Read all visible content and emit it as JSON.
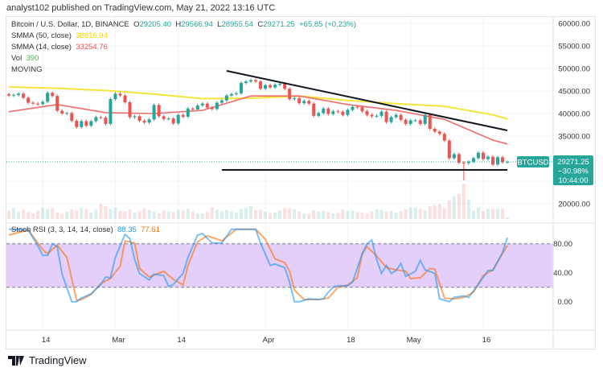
{
  "header": {
    "published": "analyst102 published on TradingView.com, May 21, 2022 13:16 UTC"
  },
  "legend": {
    "symbol": "Bitcoin / U.S. Dollar, 1D, BINANCE",
    "o_label": "O",
    "o": "29205.40",
    "h_label": "H",
    "h": "29566.94",
    "l_label": "L",
    "l": "28955.54",
    "c_label": "C",
    "c": "29271.25",
    "change": "+65.85 (+0.23%)",
    "smma50_label": "SMMA (50, close)",
    "smma50_value": "38816.94",
    "smma14_label": "SMMA (14, close)",
    "smma14_value": "33254.76",
    "vol_label": "Vol",
    "vol_value": "390",
    "moving": "MOVING",
    "stoch_label": "Stoch RSI (3, 3, 14, 14, close)",
    "stoch_k": "88.35",
    "stoch_d": "77.61"
  },
  "price_box": {
    "symbol": "BTCUSD",
    "price": "29271.25",
    "change": "−30.98%",
    "countdown": "10:44:00"
  },
  "price_axis": [
    "60000.00",
    "55000.00",
    "50000.00",
    "45000.00",
    "40000.00",
    "35000.00",
    "20000.00"
  ],
  "rsi_axis": [
    "80.00",
    "40.00",
    "0.00"
  ],
  "time_axis": [
    {
      "label": "14",
      "date": "Feb 14"
    },
    {
      "label": "Mar",
      "date": "Mar 1"
    },
    {
      "label": "14",
      "date": "Mar 14"
    },
    {
      "label": "Apr",
      "date": "Apr 1"
    },
    {
      "label": "18",
      "date": "Apr 18"
    },
    {
      "label": "May",
      "date": "May 1"
    },
    {
      "label": "16",
      "date": "May 16"
    }
  ],
  "footer": {
    "brand": "TradingView"
  },
  "colors": {
    "up": "#26a69a",
    "down": "#ef5350",
    "smma50": "#f7e43a",
    "smma14": "#f26b6b",
    "k": "#2196f3",
    "d": "#ff6d00",
    "band": "#e4cffa"
  },
  "chart_data": {
    "type": "candlestick",
    "first_open": 44300,
    "closes": [
      44000,
      44100,
      44400,
      43500,
      42400,
      42200,
      42100,
      42600,
      44600,
      43900,
      40600,
      40000,
      40100,
      38400,
      37000,
      38300,
      37300,
      38300,
      39200,
      39100,
      37700,
      43200,
      44400,
      44000,
      42500,
      39200,
      39400,
      38400,
      38000,
      38700,
      41900,
      39400,
      38800,
      38900,
      37800,
      39700,
      39300,
      41100,
      40900,
      41800,
      42200,
      41300,
      41000,
      42400,
      42900,
      44000,
      44300,
      44500,
      46800,
      47100,
      47400,
      47100,
      45500,
      46300,
      45800,
      46400,
      46600,
      45500,
      43200,
      43400,
      42300,
      42800,
      42200,
      39500,
      40100,
      41100,
      39900,
      40500,
      40400,
      39700,
      40800,
      41500,
      41400,
      40500,
      39700,
      39400,
      39500,
      40400,
      38100,
      39200,
      39700,
      38600,
      37700,
      38500,
      38500,
      37700,
      39700,
      36600,
      36000,
      35500,
      34000,
      30100,
      31000,
      29100,
      29000,
      29300,
      30100,
      31300,
      29900,
      30400,
      28700,
      30300,
      29200,
      29271.25
    ],
    "extremes": [
      {
        "date": "May 12",
        "low": 25200
      },
      {
        "date": "May 21",
        "high": 29566.94,
        "low": 28955.54
      }
    ],
    "volumes": [
      45,
      60,
      40,
      50,
      38,
      30,
      45,
      62,
      55,
      58,
      35,
      28,
      40,
      52,
      45,
      60,
      55,
      35,
      50,
      80,
      70,
      55,
      60,
      45,
      40,
      50,
      35,
      42,
      60,
      48,
      40,
      30,
      45,
      40,
      38,
      50,
      45,
      55,
      40,
      32,
      30,
      40,
      62,
      50,
      42,
      48,
      40,
      35,
      55,
      60,
      70,
      48,
      50,
      40,
      32,
      35,
      45,
      60,
      58,
      52,
      40,
      30,
      28,
      48,
      40,
      45,
      38,
      30,
      32,
      52,
      42,
      46,
      38,
      36,
      30,
      42,
      52,
      48,
      40,
      45,
      34,
      42,
      55,
      62,
      60,
      55,
      48,
      70,
      75,
      80,
      60,
      100,
      120,
      135,
      190,
      105,
      45,
      62,
      45,
      55,
      55,
      55,
      55,
      8
    ],
    "smma50": [
      [
        "Feb 7",
        45900
      ],
      [
        "Feb 17",
        45600
      ],
      [
        "Feb 27",
        45100
      ],
      [
        "Mar 9",
        44300
      ],
      [
        "Mar 19",
        43300
      ],
      [
        "Mar 29",
        43400
      ],
      [
        "Apr 8",
        43900
      ],
      [
        "Apr 18",
        42900
      ],
      [
        "Apr 28",
        42200
      ],
      [
        "May 8",
        41600
      ],
      [
        "May 18",
        39700
      ],
      [
        "May 21",
        38816.94
      ]
    ],
    "smma14": [
      [
        "Feb 7",
        40400
      ],
      [
        "Feb 17",
        42000
      ],
      [
        "Feb 27",
        40200
      ],
      [
        "Mar 9",
        40000
      ],
      [
        "Mar 19",
        40700
      ],
      [
        "Mar 29",
        43900
      ],
      [
        "Apr 8",
        43900
      ],
      [
        "Apr 18",
        42000
      ],
      [
        "Apr 28",
        40700
      ],
      [
        "May 8",
        38700
      ],
      [
        "May 18",
        34100
      ],
      [
        "May 21",
        33254.76
      ]
    ],
    "trendlines": [
      {
        "from": [
          "Mar 24",
          49460
        ],
        "to": [
          "May 21",
          36250
        ]
      },
      {
        "from": [
          "Mar 23",
          27500
        ],
        "to": [
          "May 21",
          27500
        ]
      }
    ],
    "price_range": [
      20000,
      60000
    ],
    "stoch_k": [
      [
        "Feb 7",
        100
      ],
      [
        "Feb 11",
        99
      ],
      [
        "Feb 13",
        77
      ],
      [
        "Feb 14",
        64
      ],
      [
        "Feb 15",
        64
      ],
      [
        "Feb 16",
        80
      ],
      [
        "Feb 17",
        76
      ],
      [
        "Feb 18",
        38
      ],
      [
        "Feb 20",
        0
      ],
      [
        "Feb 21",
        0
      ],
      [
        "Feb 22",
        5
      ],
      [
        "Feb 24",
        11
      ],
      [
        "Feb 26",
        24
      ],
      [
        "Feb 27",
        34
      ],
      [
        "Feb 28",
        33
      ],
      [
        "Mar 1",
        61
      ],
      [
        "Mar 3",
        93
      ],
      [
        "Mar 4",
        87
      ],
      [
        "Mar 5",
        58
      ],
      [
        "Mar 6",
        39
      ],
      [
        "Mar 8",
        30
      ],
      [
        "Mar 9",
        38
      ],
      [
        "Mar 11",
        36
      ],
      [
        "Mar 12",
        21
      ],
      [
        "Mar 13",
        24
      ],
      [
        "Mar 15",
        39
      ],
      [
        "Mar 16",
        61
      ],
      [
        "Mar 18",
        92
      ],
      [
        "Mar 19",
        94
      ],
      [
        "Mar 21",
        81
      ],
      [
        "Mar 23",
        81
      ],
      [
        "Mar 25",
        100
      ],
      [
        "Mar 30",
        100
      ],
      [
        "Mar 31",
        81
      ],
      [
        "Apr 2",
        50
      ],
      [
        "Apr 3",
        52
      ],
      [
        "Apr 5",
        47
      ],
      [
        "Apr 6",
        27
      ],
      [
        "Apr 7",
        0
      ],
      [
        "Apr 8",
        0
      ],
      [
        "Apr 10",
        4
      ],
      [
        "Apr 12",
        3
      ],
      [
        "Apr 13",
        4
      ],
      [
        "Apr 14",
        13
      ],
      [
        "Apr 15",
        20
      ],
      [
        "Apr 16",
        22
      ],
      [
        "Apr 18",
        22
      ],
      [
        "Apr 19",
        27
      ],
      [
        "Apr 21",
        66
      ],
      [
        "Apr 22",
        80
      ],
      [
        "Apr 23",
        85
      ],
      [
        "Apr 24",
        58
      ],
      [
        "Apr 25",
        39
      ],
      [
        "Apr 26",
        50
      ],
      [
        "Apr 27",
        39
      ],
      [
        "Apr 28",
        43
      ],
      [
        "Apr 29",
        53
      ],
      [
        "Apr 30",
        35
      ],
      [
        "May 2",
        42
      ],
      [
        "May 3",
        57
      ],
      [
        "May 4",
        44
      ],
      [
        "May 6",
        39
      ],
      [
        "May 7",
        4
      ],
      [
        "May 9",
        0
      ],
      [
        "May 10",
        6
      ],
      [
        "May 12",
        8
      ],
      [
        "May 13",
        6
      ],
      [
        "May 15",
        24
      ],
      [
        "May 17",
        43
      ],
      [
        "May 18",
        43
      ],
      [
        "May 20",
        68
      ],
      [
        "May 21",
        88.35
      ]
    ],
    "stoch_d": [
      [
        "Feb 7",
        92
      ],
      [
        "Feb 11",
        99
      ],
      [
        "Feb 14",
        72
      ],
      [
        "Feb 15",
        66
      ],
      [
        "Feb 17",
        78
      ],
      [
        "Feb 19",
        61
      ],
      [
        "Feb 21",
        2
      ],
      [
        "Feb 22",
        3
      ],
      [
        "Feb 24",
        10
      ],
      [
        "Feb 26",
        25
      ],
      [
        "Feb 28",
        32
      ],
      [
        "Mar 2",
        49
      ],
      [
        "Mar 3",
        84
      ],
      [
        "Mar 5",
        81
      ],
      [
        "Mar 6",
        46
      ],
      [
        "Mar 8",
        34
      ],
      [
        "Mar 11",
        42
      ],
      [
        "Mar 13",
        31
      ],
      [
        "Mar 15",
        23
      ],
      [
        "Mar 16",
        50
      ],
      [
        "Mar 18",
        83
      ],
      [
        "Mar 20",
        91
      ],
      [
        "Mar 23",
        84
      ],
      [
        "Mar 26",
        100
      ],
      [
        "Mar 30",
        100
      ],
      [
        "Apr 1",
        86
      ],
      [
        "Apr 3",
        59
      ],
      [
        "Apr 5",
        54
      ],
      [
        "Apr 6",
        42
      ],
      [
        "Apr 7",
        16
      ],
      [
        "Apr 9",
        3
      ],
      [
        "Apr 12",
        3
      ],
      [
        "Apr 14",
        5
      ],
      [
        "Apr 16",
        20
      ],
      [
        "Apr 18",
        23
      ],
      [
        "Apr 20",
        33
      ],
      [
        "Apr 21",
        66
      ],
      [
        "Apr 22",
        76
      ],
      [
        "Apr 24",
        63
      ],
      [
        "Apr 26",
        47
      ],
      [
        "Apr 28",
        44
      ],
      [
        "Apr 30",
        42
      ],
      [
        "May 1",
        32
      ],
      [
        "May 3",
        33
      ],
      [
        "May 5",
        46
      ],
      [
        "May 6",
        45
      ],
      [
        "May 8",
        5
      ],
      [
        "May 10",
        4
      ],
      [
        "May 12",
        6
      ],
      [
        "May 14",
        13
      ],
      [
        "May 16",
        36
      ],
      [
        "May 18",
        44
      ],
      [
        "May 21",
        77.61
      ]
    ],
    "stoch_bands": [
      20,
      80
    ]
  }
}
